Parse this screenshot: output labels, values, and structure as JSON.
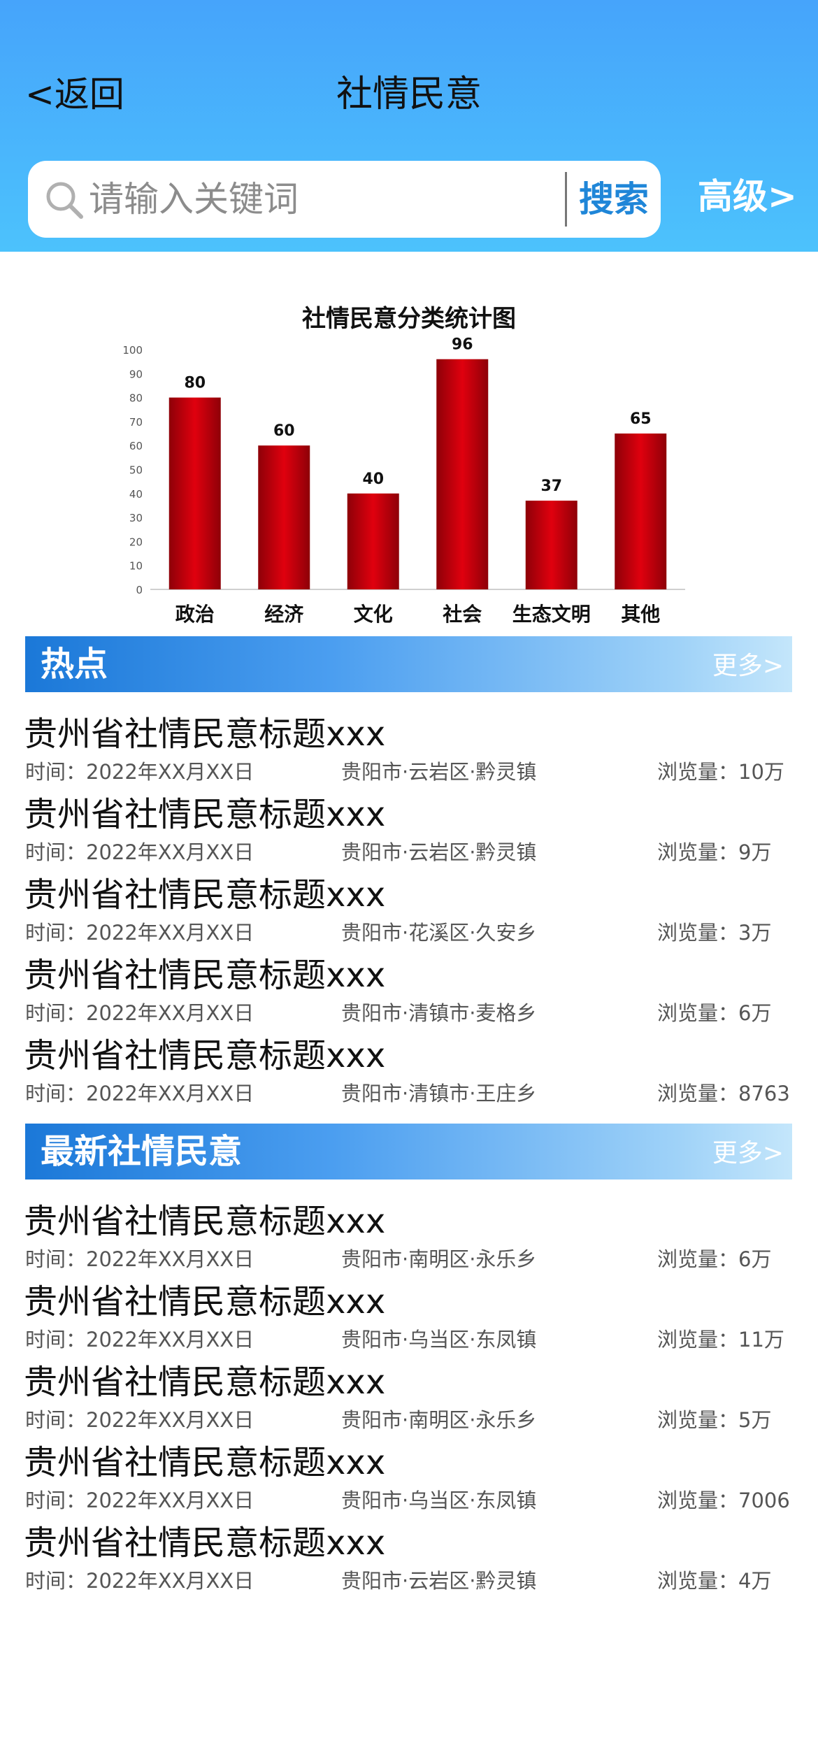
{
  "header": {
    "back_label": "<返回",
    "title": "社情民意",
    "search_placeholder": "请输入关键词",
    "search_button": "搜索",
    "advanced": "高级>"
  },
  "colors": {
    "header_top": "#46a4fb",
    "header_bottom": "#4cc2fc",
    "bar": "#d0000e",
    "section_blue": "#1b78d8"
  },
  "chart_data": {
    "type": "bar",
    "title": "社情民意分类统计图",
    "categories": [
      "政治",
      "经济",
      "文化",
      "社会",
      "生态文明",
      "其他"
    ],
    "values": [
      80,
      60,
      40,
      96,
      37,
      65
    ],
    "ylim": [
      0,
      100
    ],
    "yticks": [
      0,
      10,
      20,
      30,
      40,
      50,
      60,
      70,
      80,
      90,
      100
    ],
    "xlabel": "",
    "ylabel": "",
    "grid": false
  },
  "hot": {
    "title": "热点",
    "more": "更多>",
    "items": [
      {
        "title": "贵州省社情民意标题xxx",
        "time": "时间：2022年XX月XX日",
        "place": "贵阳市·云岩区·黔灵镇",
        "views": "浏览量：10万"
      },
      {
        "title": "贵州省社情民意标题xxx",
        "time": "时间：2022年XX月XX日",
        "place": "贵阳市·云岩区·黔灵镇",
        "views": "浏览量：9万"
      },
      {
        "title": "贵州省社情民意标题xxx",
        "time": "时间：2022年XX月XX日",
        "place": "贵阳市·花溪区·久安乡",
        "views": "浏览量：3万"
      },
      {
        "title": "贵州省社情民意标题xxx",
        "time": "时间：2022年XX月XX日",
        "place": "贵阳市·清镇市·麦格乡",
        "views": "浏览量：6万"
      },
      {
        "title": "贵州省社情民意标题xxx",
        "time": "时间：2022年XX月XX日",
        "place": "贵阳市·清镇市·王庄乡",
        "views": "浏览量：8763"
      }
    ]
  },
  "latest": {
    "title": "最新社情民意",
    "more": "更多>",
    "items": [
      {
        "title": "贵州省社情民意标题xxx",
        "time": "时间：2022年XX月XX日",
        "place": "贵阳市·南明区·永乐乡",
        "views": "浏览量：6万"
      },
      {
        "title": "贵州省社情民意标题xxx",
        "time": "时间：2022年XX月XX日",
        "place": "贵阳市·乌当区·东凤镇",
        "views": "浏览量：11万"
      },
      {
        "title": "贵州省社情民意标题xxx",
        "time": "时间：2022年XX月XX日",
        "place": "贵阳市·南明区·永乐乡",
        "views": "浏览量：5万"
      },
      {
        "title": "贵州省社情民意标题xxx",
        "time": "时间：2022年XX月XX日",
        "place": "贵阳市·乌当区·东凤镇",
        "views": "浏览量：7006"
      },
      {
        "title": "贵州省社情民意标题xxx",
        "time": "时间：2022年XX月XX日",
        "place": "贵阳市·云岩区·黔灵镇",
        "views": "浏览量：4万"
      }
    ]
  }
}
